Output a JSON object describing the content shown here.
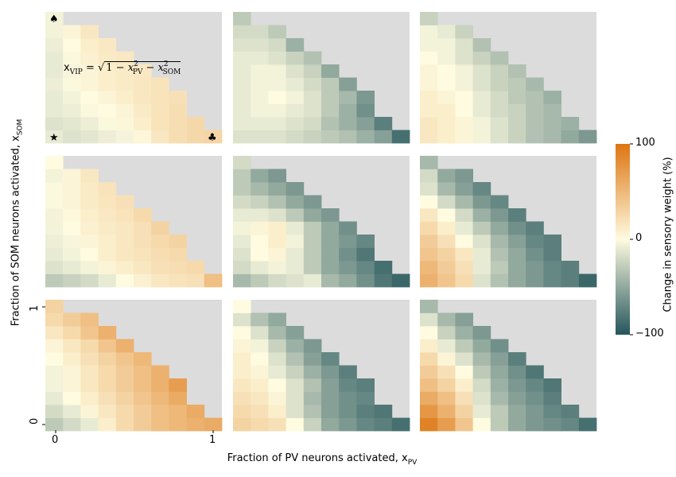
{
  "chart_data": {
    "type": "heatmap",
    "layout": "3x3 grid of triangular heatmaps",
    "grid_size": 10,
    "xlabel_text": "Fraction of PV neurons activated, x",
    "xlabel_sub": "PV",
    "ylabel_text": "Fraction of SOM neurons activated, x",
    "ylabel_sub": "SOM",
    "x_ticks": [
      "0",
      "1"
    ],
    "y_ticks": [
      "0",
      "1"
    ],
    "colorbar": {
      "label": "Change in sensory weight (%)",
      "ticks": [
        "100",
        "0",
        "−100"
      ],
      "range": [
        -100,
        100
      ],
      "colors": {
        "high": "#dd7511",
        "mid": "#fefbe0",
        "low": "#25565c"
      }
    },
    "annotation": {
      "formula_lhs": "x",
      "formula_lhs_sub": "VIP",
      "formula_eq": " = ",
      "formula_rhs_1": "1 − ",
      "formula_rhs_x": "x",
      "formula_rhs_pv": "PV",
      "formula_rhs_minus": " − ",
      "formula_rhs_som": "SOM",
      "formula_sq": "2"
    },
    "markers": {
      "spade": "♠",
      "star": "★",
      "club": "♣"
    },
    "masked_color": "#dcdcdc",
    "panels": [
      {
        "values": [
          [
            -10,
            -15,
            -12,
            -8,
            -4,
            4,
            15,
            22,
            26,
            28
          ],
          [
            -15,
            -12,
            -8,
            -2,
            3,
            10,
            18,
            22,
            26
          ],
          [
            -10,
            -8,
            -2,
            0,
            5,
            12,
            18,
            22
          ],
          [
            -10,
            -5,
            0,
            5,
            10,
            15,
            18,
            20
          ],
          [
            -8,
            -2,
            5,
            10,
            12,
            15,
            18
          ],
          [
            -10,
            -3,
            5,
            10,
            12,
            14
          ],
          [
            -10,
            -2,
            8,
            12,
            14
          ],
          [
            -8,
            0,
            10,
            14
          ],
          [
            -5,
            5,
            15
          ],
          [
            -5
          ]
        ]
      },
      {
        "values": [
          [
            -15,
            -15,
            -15,
            -20,
            -25,
            -30,
            -35,
            -45,
            -55,
            -85
          ],
          [
            -10,
            -10,
            -10,
            -15,
            -20,
            -35,
            -45,
            -55,
            -75
          ],
          [
            -10,
            -5,
            -5,
            -10,
            -15,
            -30,
            -45,
            -65
          ],
          [
            -10,
            -5,
            0,
            -5,
            -15,
            -30,
            -40,
            -60
          ],
          [
            -10,
            -5,
            -5,
            -10,
            -20,
            -30,
            -55
          ],
          [
            -10,
            -5,
            -5,
            -15,
            -25,
            -50
          ],
          [
            -10,
            -10,
            -15,
            -25,
            -35
          ],
          [
            -15,
            -15,
            -20,
            -45
          ],
          [
            -20,
            -20,
            -30
          ],
          [
            -30
          ]
        ]
      },
      {
        "values": [
          [
            15,
            10,
            5,
            -5,
            -15,
            -25,
            -35,
            -40,
            -50,
            -60
          ],
          [
            15,
            10,
            5,
            -5,
            -15,
            -25,
            -35,
            -40,
            -45
          ],
          [
            10,
            10,
            0,
            -10,
            -20,
            -25,
            -35,
            -40
          ],
          [
            10,
            5,
            0,
            -10,
            -20,
            -30,
            -35,
            -45
          ],
          [
            5,
            0,
            -5,
            -15,
            -25,
            -30,
            -40
          ],
          [
            5,
            0,
            -5,
            -15,
            -25,
            -35
          ],
          [
            0,
            -5,
            -15,
            -25,
            -35
          ],
          [
            -5,
            -5,
            -15,
            -35
          ],
          [
            -5,
            -10,
            -25
          ],
          [
            -25
          ]
        ]
      },
      {
        "values": [
          [
            -30,
            -25,
            -20,
            -10,
            0,
            8,
            15,
            18,
            20,
            45
          ],
          [
            -15,
            -10,
            -5,
            5,
            10,
            15,
            20,
            22,
            25
          ],
          [
            -10,
            -5,
            0,
            10,
            15,
            18,
            22,
            25
          ],
          [
            -8,
            -3,
            5,
            10,
            15,
            20,
            25,
            30
          ],
          [
            -5,
            0,
            8,
            12,
            15,
            20,
            30
          ],
          [
            -5,
            2,
            10,
            14,
            18,
            25
          ],
          [
            -2,
            5,
            12,
            16,
            20
          ],
          [
            -2,
            5,
            12,
            18
          ],
          [
            -5,
            5,
            15
          ],
          [
            0
          ]
        ]
      },
      {
        "values": [
          [
            -40,
            -30,
            -20,
            -15,
            -10,
            -40,
            -50,
            -65,
            -80,
            -90
          ],
          [
            -20,
            -10,
            -5,
            -10,
            -30,
            -50,
            -60,
            -70,
            -85
          ],
          [
            -15,
            0,
            5,
            -10,
            -30,
            -50,
            -65,
            -80
          ],
          [
            -10,
            0,
            10,
            -5,
            -30,
            -50,
            -60,
            -70
          ],
          [
            -5,
            5,
            10,
            -10,
            -30,
            -50,
            -65
          ],
          [
            -10,
            -10,
            -15,
            -30,
            -50,
            -60
          ],
          [
            -20,
            -25,
            -35,
            -50,
            -60
          ],
          [
            -30,
            -40,
            -50,
            -60
          ],
          [
            -30,
            -50,
            -60
          ],
          [
            -20
          ]
        ]
      },
      {
        "values": [
          [
            55,
            40,
            25,
            -15,
            -35,
            -50,
            -60,
            -70,
            -75,
            -90
          ],
          [
            50,
            35,
            20,
            -10,
            -30,
            -50,
            -60,
            -70,
            -75
          ],
          [
            40,
            30,
            15,
            -10,
            -35,
            -50,
            -65,
            -75
          ],
          [
            35,
            20,
            0,
            -15,
            -40,
            -55,
            -70,
            -75
          ],
          [
            25,
            10,
            -10,
            -30,
            -50,
            -65,
            -75
          ],
          [
            15,
            0,
            -20,
            -45,
            -60,
            -75
          ],
          [
            0,
            -20,
            -40,
            -60,
            -70
          ],
          [
            -15,
            -40,
            -55,
            -70
          ],
          [
            -20,
            -50,
            -60
          ],
          [
            -40
          ]
        ]
      },
      {
        "values": [
          [
            -30,
            -20,
            -10,
            10,
            25,
            35,
            45,
            50,
            55,
            60
          ],
          [
            -20,
            -10,
            5,
            15,
            25,
            35,
            45,
            50,
            60
          ],
          [
            -10,
            0,
            10,
            20,
            30,
            40,
            50,
            60
          ],
          [
            -5,
            5,
            15,
            25,
            35,
            45,
            55,
            70
          ],
          [
            -5,
            5,
            15,
            25,
            35,
            45,
            55
          ],
          [
            0,
            10,
            20,
            30,
            40,
            50
          ],
          [
            5,
            15,
            25,
            40,
            55
          ],
          [
            15,
            25,
            40,
            55
          ],
          [
            25,
            35,
            45
          ],
          [
            30
          ]
        ]
      },
      {
        "values": [
          [
            30,
            25,
            20,
            0,
            -25,
            -50,
            -60,
            -70,
            -75,
            -85
          ],
          [
            25,
            20,
            10,
            -15,
            -35,
            -55,
            -65,
            -75,
            -80
          ],
          [
            20,
            15,
            5,
            -15,
            -40,
            -55,
            -65,
            -70
          ],
          [
            15,
            10,
            0,
            -15,
            -35,
            -55,
            -70,
            -75
          ],
          [
            10,
            5,
            -10,
            -25,
            -45,
            -60,
            -75
          ],
          [
            10,
            0,
            -15,
            -35,
            -55,
            -70
          ],
          [
            5,
            -5,
            -25,
            -45,
            -60
          ],
          [
            0,
            -15,
            -40,
            -55
          ],
          [
            -15,
            -35,
            -50
          ],
          [
            0
          ]
        ]
      },
      {
        "values": [
          [
            90,
            70,
            40,
            0,
            -30,
            -50,
            -60,
            -65,
            -70,
            -85
          ],
          [
            75,
            55,
            30,
            -10,
            -30,
            -50,
            -60,
            -70,
            -75
          ],
          [
            60,
            45,
            20,
            -15,
            -40,
            -55,
            -65,
            -75
          ],
          [
            45,
            30,
            10,
            -20,
            -45,
            -60,
            -70,
            -80
          ],
          [
            35,
            20,
            0,
            -30,
            -50,
            -65,
            -80
          ],
          [
            25,
            5,
            -15,
            -40,
            -55,
            -75
          ],
          [
            10,
            -10,
            -30,
            -50,
            -65
          ],
          [
            0,
            -25,
            -45,
            -60
          ],
          [
            -15,
            -40,
            -55
          ],
          [
            -40
          ]
        ]
      }
    ]
  }
}
